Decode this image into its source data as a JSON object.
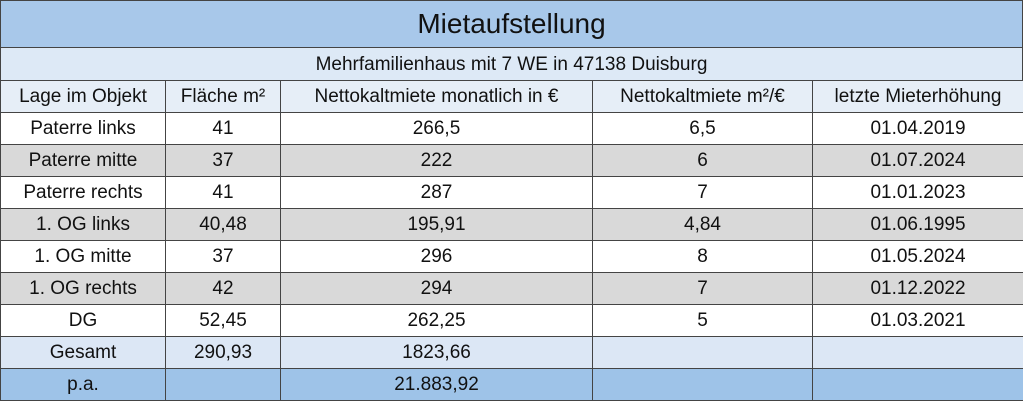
{
  "title": "Mietaufstellung",
  "subtitle": "Mehrfamilienhaus mit 7 WE in 47138 Duisburg",
  "table": {
    "header": [
      "Lage im Objekt",
      "Fläche m²",
      "Nettokaltmiete monatlich in €",
      "Nettokaltmiete m²/€",
      "letzte Mieterhöhung"
    ],
    "rows": [
      [
        "Paterre links",
        "41",
        "266,5",
        "6,5",
        "01.04.2019"
      ],
      [
        "Paterre mitte",
        "37",
        "222",
        "6",
        "01.07.2024"
      ],
      [
        "Paterre rechts",
        "41",
        "287",
        "7",
        "01.01.2023"
      ],
      [
        "1. OG links",
        "40,48",
        "195,91",
        "4,84",
        "01.06.1995"
      ],
      [
        "1. OG mitte",
        "37",
        "296",
        "8",
        "01.05.2024"
      ],
      [
        "1. OG rechts",
        "42",
        "294",
        "7",
        "01.12.2022"
      ],
      [
        "DG",
        "52,45",
        "262,25",
        "5",
        "01.03.2021"
      ]
    ],
    "total": {
      "label": "Gesamt",
      "area": "290,93",
      "rent_month": "1823,66"
    },
    "per_year": {
      "label": "p.a.",
      "rent_year": "21.883,92"
    }
  }
}
